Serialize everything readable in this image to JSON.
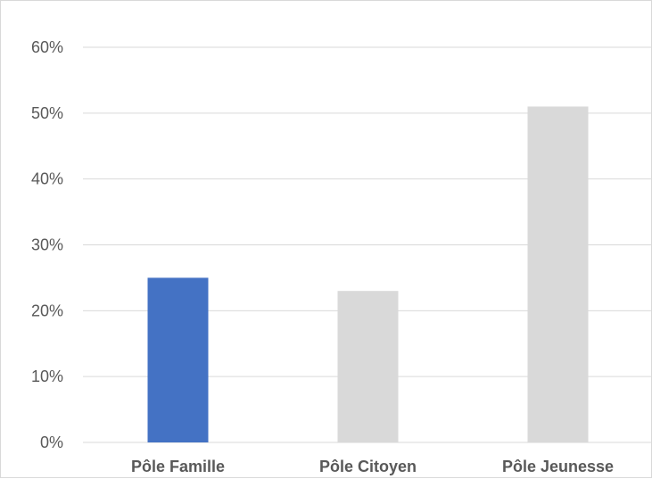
{
  "chart_data": {
    "type": "bar",
    "title": "",
    "xlabel": "",
    "ylabel": "",
    "categories": [
      "Pôle Famille",
      "Pôle Citoyen",
      "Pôle Jeunesse"
    ],
    "values": [
      25,
      23,
      51
    ],
    "unit": "%",
    "ylim": [
      0,
      60
    ],
    "yticks": [
      0,
      10,
      20,
      30,
      40,
      50,
      60
    ],
    "ytick_labels": [
      "0%",
      "10%",
      "20%",
      "30%",
      "40%",
      "50%",
      "60%"
    ],
    "grid": true,
    "legend": "none",
    "colors": {
      "highlight": "#4472C4",
      "default": "#D9D9D9",
      "gridline": "#D9D9D9",
      "text": "#595959"
    },
    "highlighted_index": 0
  }
}
